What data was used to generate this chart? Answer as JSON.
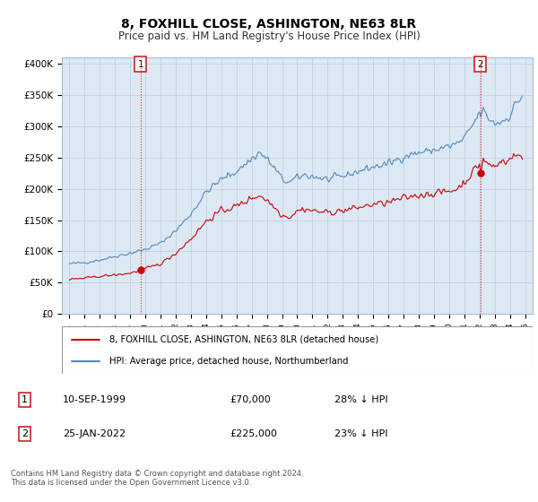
{
  "title": "8, FOXHILL CLOSE, ASHINGTON, NE63 8LR",
  "subtitle": "Price paid vs. HM Land Registry's House Price Index (HPI)",
  "title_fontsize": 10,
  "subtitle_fontsize": 8.5,
  "ylabel_ticks": [
    "£0",
    "£50K",
    "£100K",
    "£150K",
    "£200K",
    "£250K",
    "£300K",
    "£350K",
    "£400K"
  ],
  "ytick_values": [
    0,
    50000,
    100000,
    150000,
    200000,
    250000,
    300000,
    350000,
    400000
  ],
  "ylim": [
    0,
    410000
  ],
  "xlim_start": 1994.5,
  "xlim_end": 2025.5,
  "sale1_date": 1999.69,
  "sale1_price": 70000,
  "sale2_date": 2022.07,
  "sale2_price": 225000,
  "red_line_color": "#cc0000",
  "blue_line_color": "#5588bb",
  "vline_color": "#dd2222",
  "grid_color": "#bbccdd",
  "chart_bg_color": "#dce9f5",
  "background_color": "#ffffff",
  "legend_label_red": "8, FOXHILL CLOSE, ASHINGTON, NE63 8LR (detached house)",
  "legend_label_blue": "HPI: Average price, detached house, Northumberland",
  "anno1_label": "1",
  "anno1_date_str": "10-SEP-1999",
  "anno1_price_str": "£70,000",
  "anno1_pct_str": "28% ↓ HPI",
  "anno2_label": "2",
  "anno2_date_str": "25-JAN-2022",
  "anno2_price_str": "£225,000",
  "anno2_pct_str": "23% ↓ HPI",
  "footer": "Contains HM Land Registry data © Crown copyright and database right 2024.\nThis data is licensed under the Open Government Licence v3.0."
}
